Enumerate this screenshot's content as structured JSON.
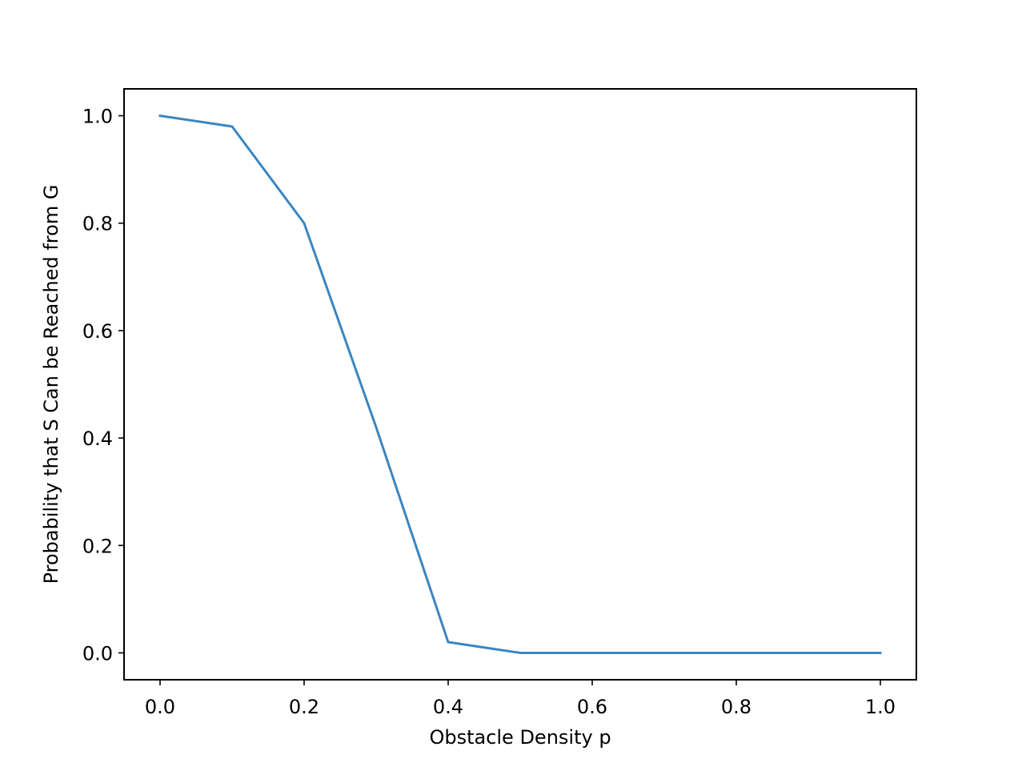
{
  "chart_data": {
    "type": "line",
    "title": "",
    "xlabel": "Obstacle Density p",
    "ylabel": "Probability that S Can be Reached from G",
    "xlim": [
      -0.05,
      1.05
    ],
    "ylim": [
      -0.05,
      1.05
    ],
    "xticks": [
      0.0,
      0.2,
      0.4,
      0.6,
      0.8,
      1.0
    ],
    "xtick_labels": [
      "0.0",
      "0.2",
      "0.4",
      "0.6",
      "0.8",
      "1.0"
    ],
    "yticks": [
      0.0,
      0.2,
      0.4,
      0.6,
      0.8,
      1.0
    ],
    "ytick_labels": [
      "0.0",
      "0.2",
      "0.4",
      "0.6",
      "0.8",
      "1.0"
    ],
    "grid": false,
    "legend": "none",
    "series": [
      {
        "color": "#3a86c0",
        "x": [
          0.0,
          0.1,
          0.2,
          0.3,
          0.4,
          0.5,
          0.6,
          0.7,
          0.8,
          0.9,
          1.0
        ],
        "y": [
          1.0,
          0.98,
          0.8,
          0.42,
          0.02,
          0.0,
          0.0,
          0.0,
          0.0,
          0.0,
          0.0
        ]
      }
    ]
  }
}
